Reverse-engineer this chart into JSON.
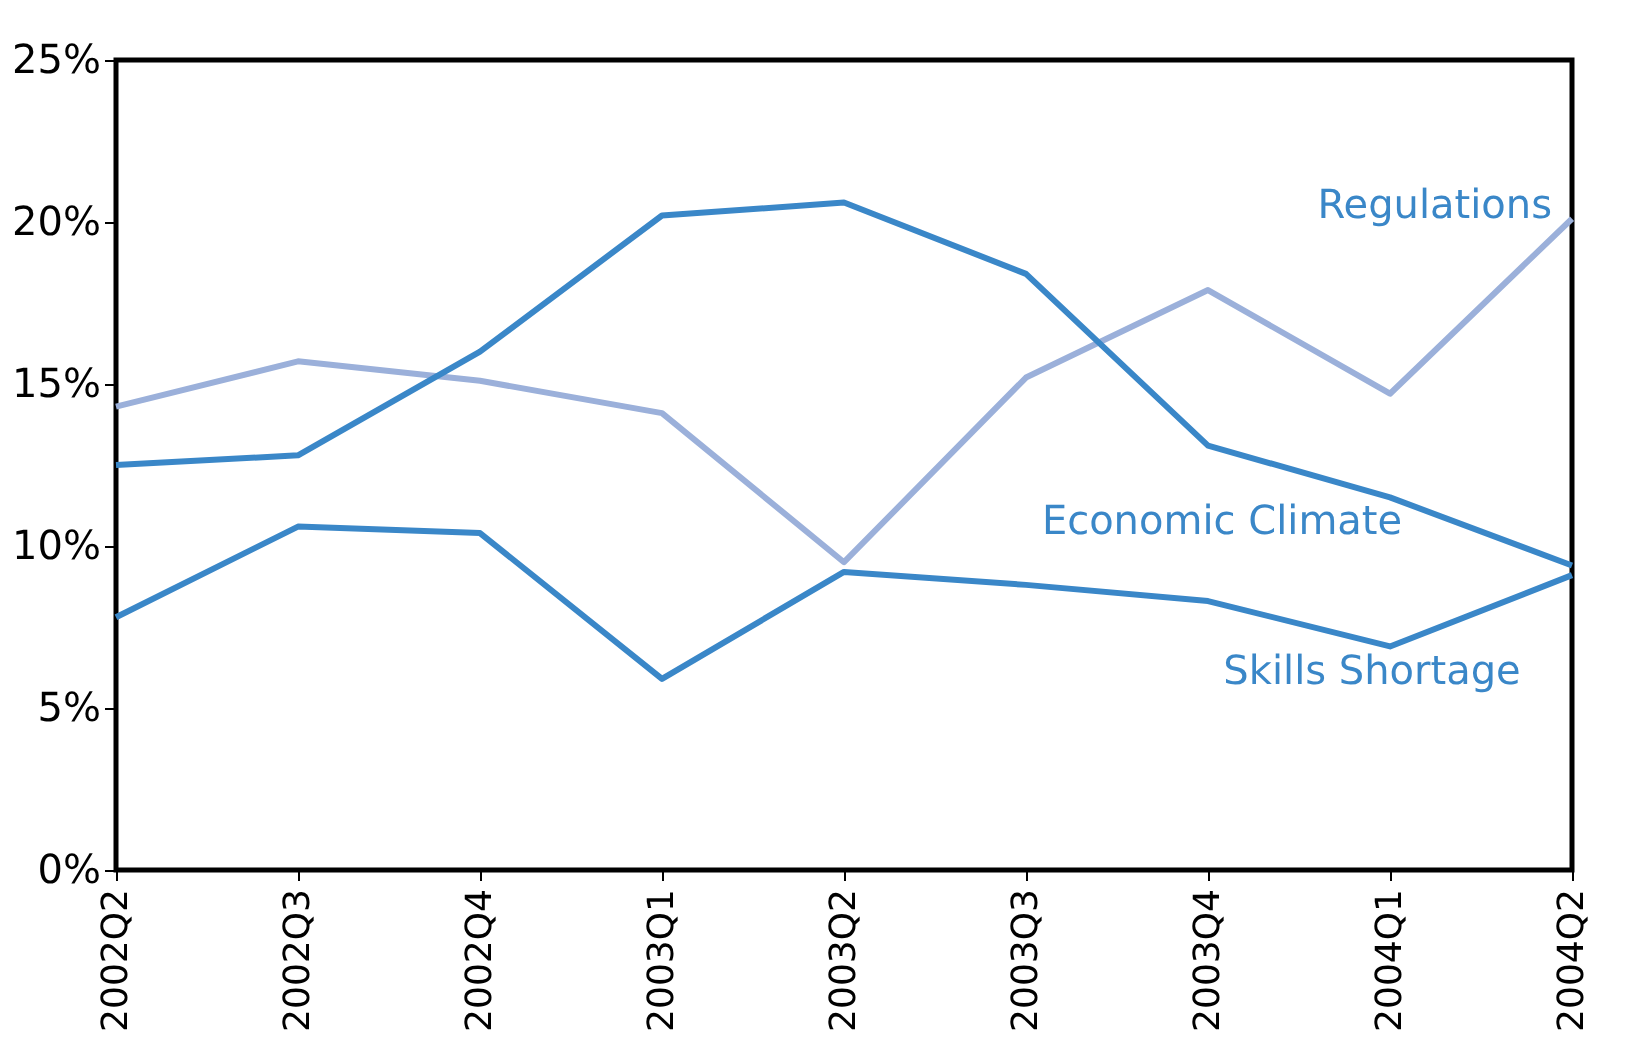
{
  "chart_data": {
    "type": "line",
    "categories": [
      "2002Q2",
      "2002Q3",
      "2002Q4",
      "2003Q1",
      "2003Q2",
      "2003Q3",
      "2003Q4",
      "2004Q1",
      "2004Q2"
    ],
    "series": [
      {
        "name": "Regulations",
        "color": "#9bb0da",
        "values": [
          14.3,
          15.7,
          15.1,
          14.1,
          9.5,
          15.2,
          17.9,
          14.7,
          20.1
        ]
      },
      {
        "name": "Economic Climate",
        "color": "#3a87c8",
        "values": [
          12.5,
          12.8,
          16.0,
          20.2,
          20.6,
          18.4,
          13.1,
          11.5,
          9.4
        ]
      },
      {
        "name": "Skills Shortage",
        "color": "#3a87c8",
        "values": [
          7.8,
          10.6,
          10.4,
          5.9,
          9.2,
          8.8,
          8.3,
          6.9,
          9.1
        ]
      }
    ],
    "ylim": [
      0,
      25
    ],
    "yticks": [
      {
        "value": 0,
        "label": "0%"
      },
      {
        "value": 5,
        "label": "5%"
      },
      {
        "value": 10,
        "label": "10%"
      },
      {
        "value": 15,
        "label": "15%"
      },
      {
        "value": 20,
        "label": "20%"
      },
      {
        "value": 25,
        "label": "25%"
      }
    ],
    "legend": false,
    "marker": "none",
    "line_style": "solid"
  }
}
